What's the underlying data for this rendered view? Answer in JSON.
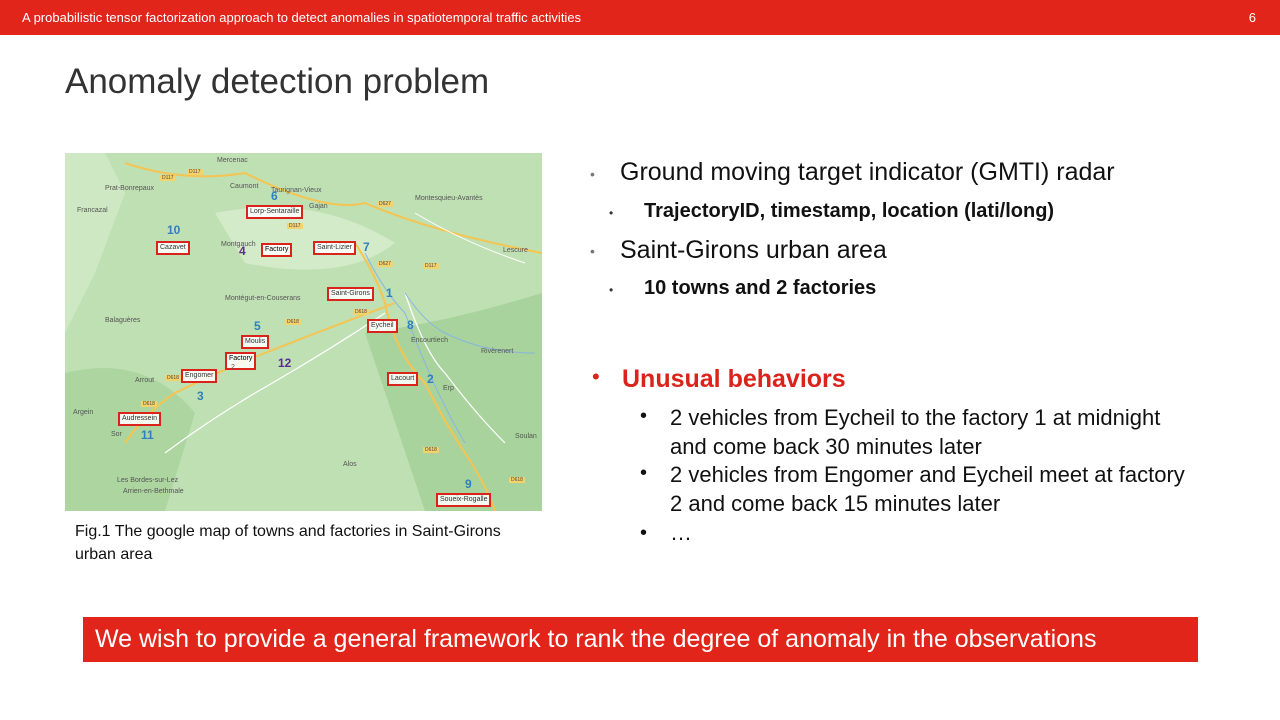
{
  "header": {
    "title": "A probabilistic tensor factorization approach to detect anomalies in spatiotemporal traffic activities",
    "page_number": "6"
  },
  "slide_title": "Anomaly detection problem",
  "map": {
    "places": [
      "Mercenac",
      "Prat-Bonrepaux",
      "Caumont",
      "Taurignan-Vieux",
      "Francazal",
      "Montesquieu-Avantès",
      "Lescure",
      "Montégut-en-Couserans",
      "Balaguères",
      "Encourtiech",
      "Rivèrenert",
      "Arrout",
      "Erp",
      "Argein",
      "Sor",
      "Soulan",
      "Alos",
      "Les Bordes-sur-Lez",
      "Arrien-en-Bethmale",
      "Gajan",
      "Montgauch"
    ],
    "roads": [
      "D117",
      "D117",
      "D627",
      "D117",
      "D627",
      "D117",
      "D618",
      "D618",
      "D618",
      "D618",
      "D618",
      "D618"
    ],
    "boxes": [
      "Lorp-Sentaraille",
      "Cazavet",
      "Factory",
      "Saint-Lizier",
      "Saint-Girons",
      "Eycheil",
      "Moulis",
      "Factory",
      "Engomer",
      "Lacourt",
      "Audressein",
      "Soueix-Rogalle"
    ],
    "numbers": [
      "6",
      "10",
      "4",
      "7",
      "1",
      "8",
      "5",
      "12",
      "3",
      "2",
      "11",
      "9"
    ],
    "factory_sub": "2"
  },
  "caption": "Fig.1 The google map of towns and factories in Saint-Girons urban area",
  "bullets": {
    "b1": "Ground moving target indicator (GMTI) radar",
    "b1_sub": "TrajectoryID, timestamp, location (lati/long)",
    "b2": "Saint-Girons urban area",
    "b2_sub": "10 towns and 2 factories"
  },
  "unusual": {
    "title": "Unusual behaviors",
    "items": [
      "2 vehicles from Eycheil to the factory 1 at midnight and come back 30 minutes later",
      "2 vehicles from Engomer and Eycheil meet at factory 2 and come back 15 minutes later",
      "…"
    ]
  },
  "banner": "We wish to provide a general framework to rank the degree of anomaly in the observations",
  "colors": {
    "accent": "#e1251b",
    "map_green": "#b9dcae",
    "number_blue": "#2f7fc1",
    "number_purple": "#5a2d91"
  }
}
